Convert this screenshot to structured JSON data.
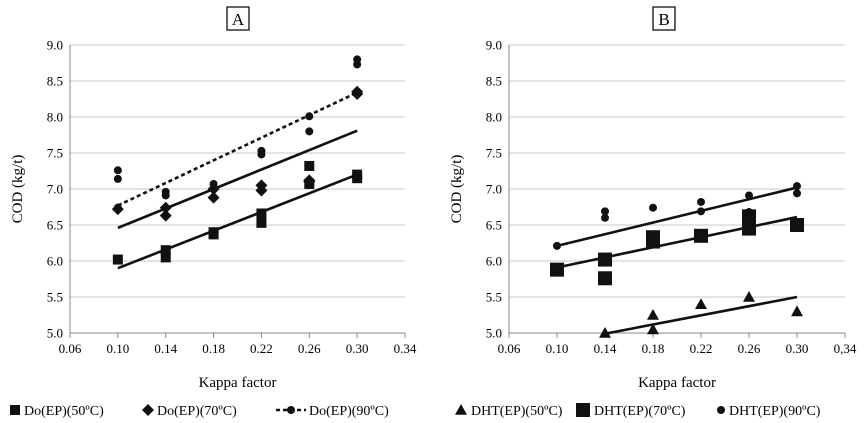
{
  "chart_data": [
    {
      "type": "scatter",
      "title": "A",
      "xlabel": "Kappa factor",
      "ylabel": "COD (kg/t)",
      "xlim": [
        0.06,
        0.34
      ],
      "ylim": [
        5.0,
        9.0
      ],
      "xticks": [
        "0.06",
        "0.10",
        "0.14",
        "0.18",
        "0.22",
        "0.26",
        "0.30",
        "0.34"
      ],
      "yticks": [
        "5.0",
        "5.5",
        "6.0",
        "6.5",
        "7.0",
        "7.5",
        "8.0",
        "8.5",
        "9.0"
      ],
      "grid": "horizontal",
      "legend_position": "bottom",
      "series": [
        {
          "name": "Do(EP)(50ºC)",
          "marker": "square",
          "line": "solid",
          "x": [
            0.1,
            0.14,
            0.14,
            0.18,
            0.18,
            0.22,
            0.22,
            0.26,
            0.26,
            0.3,
            0.3
          ],
          "y": [
            6.02,
            6.05,
            6.15,
            6.37,
            6.4,
            6.53,
            6.66,
            7.07,
            7.32,
            7.15,
            7.2
          ],
          "fit": {
            "x": [
              0.1,
              0.3
            ],
            "y": [
              5.9,
              7.2
            ]
          }
        },
        {
          "name": "Do(EP)(70ºC)",
          "marker": "diamond",
          "line": "solid",
          "x": [
            0.1,
            0.14,
            0.14,
            0.18,
            0.18,
            0.22,
            0.22,
            0.26,
            0.26,
            0.3,
            0.3
          ],
          "y": [
            6.72,
            6.63,
            6.74,
            6.88,
            7.0,
            6.98,
            7.05,
            7.1,
            7.12,
            8.32,
            8.35
          ],
          "fit": {
            "x": [
              0.1,
              0.3
            ],
            "y": [
              6.46,
              7.81
            ]
          }
        },
        {
          "name": "Do(EP)(90ºC)",
          "marker": "circle",
          "line": "dashed",
          "x": [
            0.1,
            0.1,
            0.1,
            0.14,
            0.14,
            0.18,
            0.18,
            0.22,
            0.22,
            0.26,
            0.26,
            0.3,
            0.3
          ],
          "y": [
            6.74,
            7.14,
            7.26,
            6.91,
            6.96,
            7.0,
            7.07,
            7.48,
            7.53,
            7.8,
            8.01,
            8.73,
            8.8
          ],
          "fit": {
            "x": [
              0.1,
              0.3
            ],
            "y": [
              6.77,
              8.34
            ]
          }
        }
      ]
    },
    {
      "type": "scatter",
      "title": "B",
      "xlabel": "Kappa factor",
      "ylabel": "COD (kg/t)",
      "xlim": [
        0.06,
        0.34
      ],
      "ylim": [
        5.0,
        9.0
      ],
      "xticks": [
        "0.06",
        "0.10",
        "0.14",
        "0.18",
        "0.22",
        "0.26",
        "0.30",
        "0,34"
      ],
      "yticks": [
        "5.0",
        "5.5",
        "6.0",
        "6.5",
        "7.0",
        "7.5",
        "8.0",
        "8.5",
        "9.0"
      ],
      "grid": "horizontal",
      "legend_position": "bottom",
      "series": [
        {
          "name": "DHT(EP)(50ºC)",
          "marker": "triangle",
          "line": "solid",
          "x": [
            0.14,
            0.18,
            0.18,
            0.22,
            0.26,
            0.3
          ],
          "y": [
            5.0,
            5.05,
            5.25,
            5.4,
            5.5,
            5.3
          ],
          "fit": {
            "x": [
              0.14,
              0.3
            ],
            "y": [
              4.99,
              5.5
            ]
          }
        },
        {
          "name": "DHT(EP)(70ºC)",
          "marker": "square",
          "line": "solid",
          "x": [
            0.1,
            0.14,
            0.14,
            0.18,
            0.18,
            0.22,
            0.26,
            0.26,
            0.3
          ],
          "y": [
            5.88,
            5.76,
            6.02,
            6.27,
            6.33,
            6.35,
            6.45,
            6.62,
            6.5
          ],
          "fit": {
            "x": [
              0.1,
              0.3
            ],
            "y": [
              5.91,
              6.61
            ]
          }
        },
        {
          "name": "DHT(EP)(90ºC)",
          "marker": "circle",
          "line": "solid",
          "x": [
            0.1,
            0.14,
            0.14,
            0.18,
            0.22,
            0.22,
            0.26,
            0.26,
            0.3,
            0.3
          ],
          "y": [
            6.21,
            6.6,
            6.69,
            6.74,
            6.69,
            6.82,
            6.68,
            6.91,
            6.94,
            7.04
          ],
          "fit": {
            "x": [
              0.1,
              0.3
            ],
            "y": [
              6.21,
              7.02
            ]
          }
        }
      ]
    }
  ]
}
